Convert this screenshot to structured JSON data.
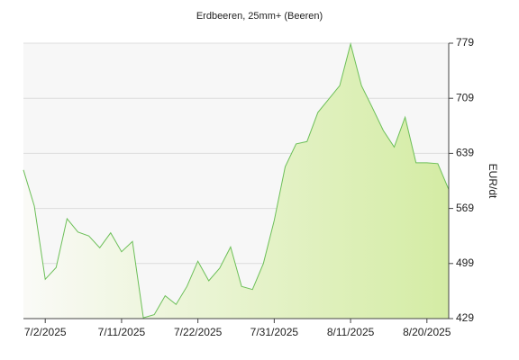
{
  "chart_data": {
    "type": "area",
    "title": "Erdbeeren, 25mm+ (Beeren)",
    "y_label": "EUR/dt",
    "categories": [
      null,
      null,
      "7/2/2025",
      null,
      null,
      null,
      null,
      null,
      null,
      "7/11/2025",
      null,
      null,
      null,
      null,
      null,
      null,
      "7/22/2025",
      null,
      null,
      null,
      null,
      null,
      null,
      "7/31/2025",
      null,
      null,
      null,
      null,
      null,
      null,
      "8/11/2025",
      null,
      null,
      null,
      null,
      null,
      null,
      "8/20/2025",
      null,
      null
    ],
    "series": [
      {
        "name": "Erdbeeren, 25mm+ (Beeren)",
        "color": "#6cbf58",
        "values": [
          618,
          572,
          479,
          494,
          556,
          539,
          534,
          519,
          538,
          514,
          527,
          430,
          434,
          458,
          447,
          470,
          502,
          477,
          493,
          520,
          470,
          466,
          499,
          554,
          622,
          651,
          654,
          691,
          708,
          725,
          778,
          725,
          697,
          668,
          647,
          685,
          627,
          627,
          626,
          593
        ]
      }
    ],
    "ylim": [
      429,
      779
    ],
    "yticks": [
      429,
      499,
      569,
      639,
      709,
      779
    ],
    "grid": true
  }
}
